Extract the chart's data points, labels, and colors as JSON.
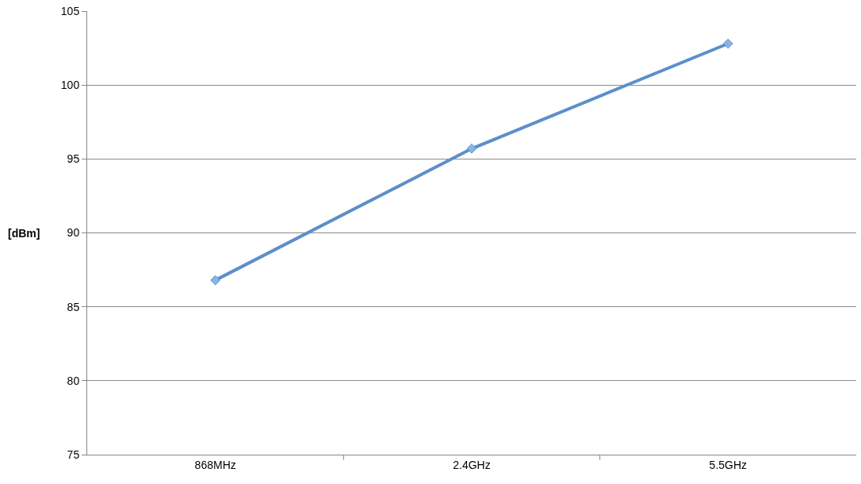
{
  "chart_data": {
    "type": "line",
    "ylabel": "[dBm]",
    "categories": [
      "868MHz",
      "2.4GHz",
      "5.5GHz"
    ],
    "series": [
      {
        "color": "#5b8fcb",
        "values": [
          86.8,
          95.7,
          102.8
        ]
      }
    ],
    "ylim": [
      75,
      105
    ],
    "yticks": [
      75,
      80,
      85,
      90,
      95,
      100,
      105
    ],
    "grid": "y",
    "marker": "diamond",
    "line_style": "solid"
  }
}
